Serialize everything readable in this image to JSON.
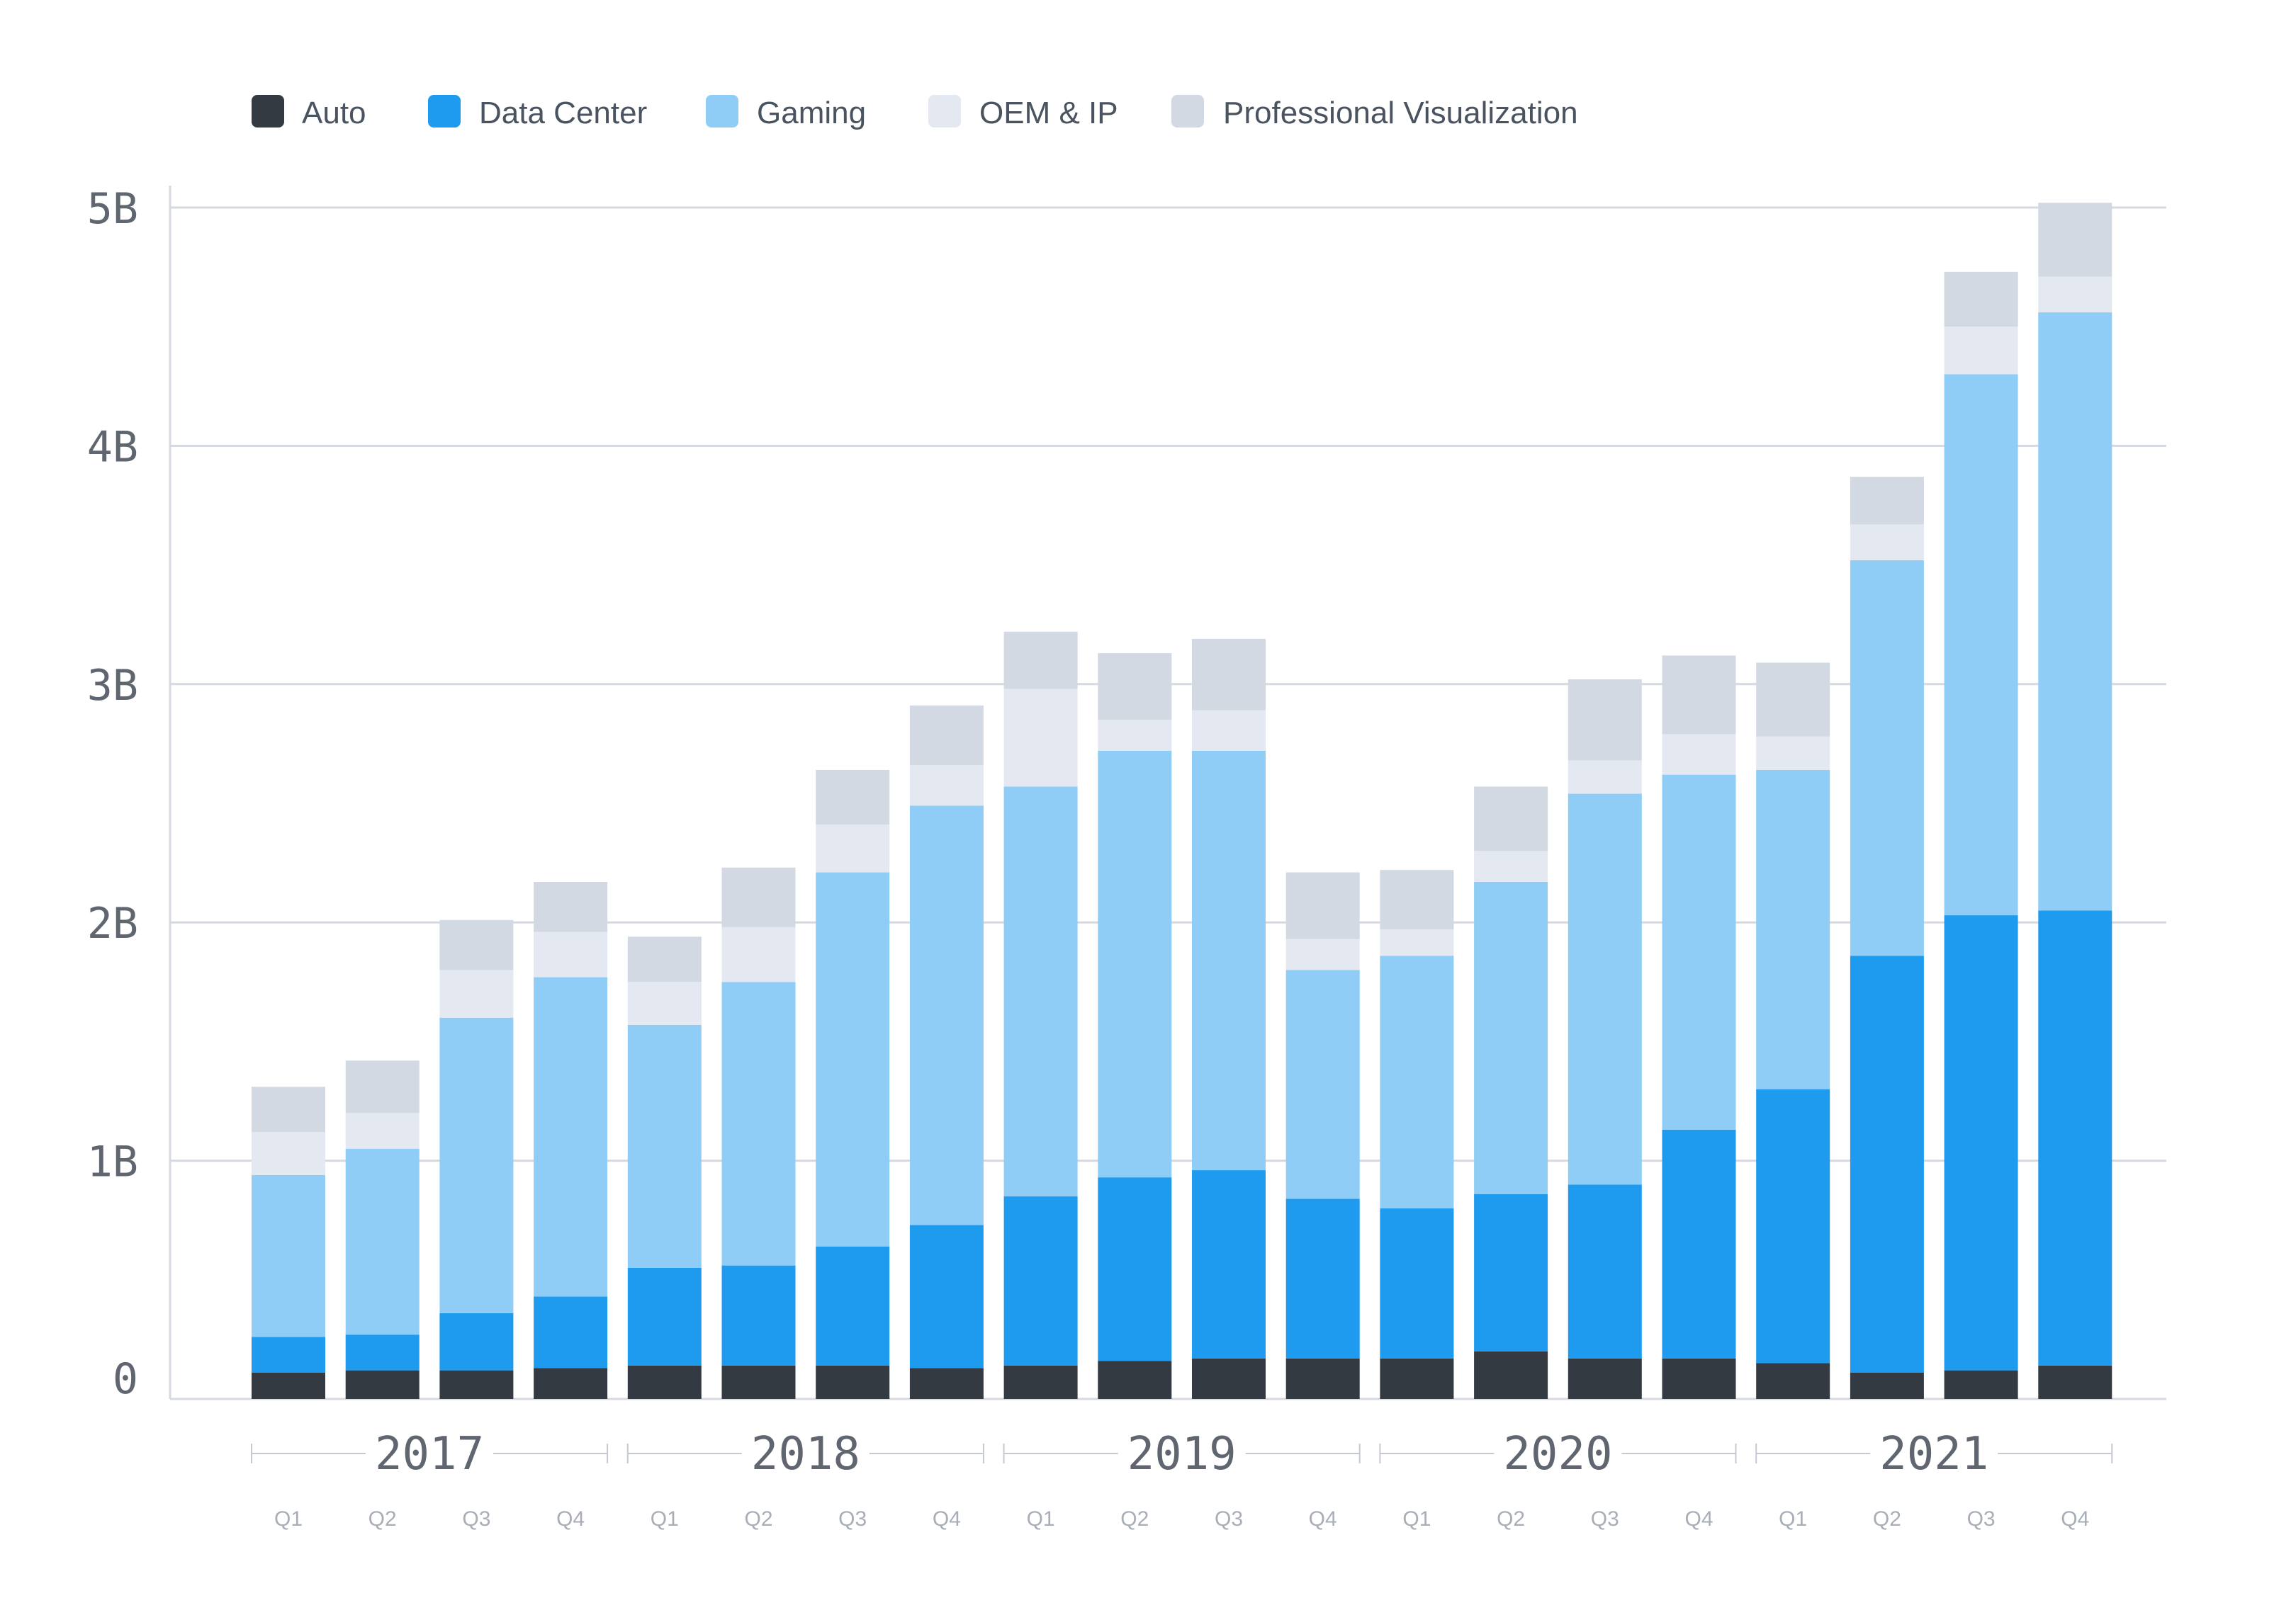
{
  "chart_data": {
    "type": "bar",
    "stacked": true,
    "title": "",
    "xlabel": "",
    "ylabel": "",
    "ylim": [
      0,
      5
    ],
    "y_unit": "B",
    "y_ticks": [
      "0",
      "1B",
      "2B",
      "3B",
      "4B",
      "5B"
    ],
    "grid": true,
    "legend_position": "top-left",
    "years": [
      "2017",
      "2018",
      "2019",
      "2020",
      "2021"
    ],
    "quarters": [
      "Q1",
      "Q2",
      "Q3",
      "Q4"
    ],
    "categories": [
      "2017 Q1",
      "2017 Q2",
      "2017 Q3",
      "2017 Q4",
      "2018 Q1",
      "2018 Q2",
      "2018 Q3",
      "2018 Q4",
      "2019 Q1",
      "2019 Q2",
      "2019 Q3",
      "2019 Q4",
      "2020 Q1",
      "2020 Q2",
      "2020 Q3",
      "2020 Q4",
      "2021 Q1",
      "2021 Q2",
      "2021 Q3",
      "2021 Q4"
    ],
    "series": [
      {
        "name": "Auto",
        "color": "#343a41",
        "values": [
          0.11,
          0.12,
          0.12,
          0.13,
          0.14,
          0.14,
          0.14,
          0.13,
          0.14,
          0.16,
          0.17,
          0.17,
          0.17,
          0.2,
          0.17,
          0.17,
          0.15,
          0.11,
          0.12,
          0.14
        ]
      },
      {
        "name": "Data Center",
        "color": "#1e9bef",
        "values": [
          0.15,
          0.15,
          0.24,
          0.3,
          0.41,
          0.42,
          0.5,
          0.6,
          0.71,
          0.77,
          0.79,
          0.67,
          0.63,
          0.66,
          0.73,
          0.96,
          1.15,
          1.75,
          1.91,
          1.91
        ]
      },
      {
        "name": "Gaming",
        "color": "#8fcdf6",
        "values": [
          0.68,
          0.78,
          1.24,
          1.34,
          1.02,
          1.19,
          1.57,
          1.76,
          1.72,
          1.79,
          1.76,
          0.96,
          1.06,
          1.31,
          1.64,
          1.49,
          1.34,
          1.66,
          2.27,
          2.51
        ]
      },
      {
        "name": "OEM & IP",
        "color": "#e4e8f0",
        "values": [
          0.18,
          0.15,
          0.2,
          0.19,
          0.18,
          0.23,
          0.2,
          0.17,
          0.41,
          0.13,
          0.17,
          0.13,
          0.11,
          0.13,
          0.14,
          0.17,
          0.14,
          0.15,
          0.2,
          0.15
        ]
      },
      {
        "name": "Professional Visualization",
        "color": "#d3d9e2",
        "values": [
          0.19,
          0.22,
          0.21,
          0.21,
          0.19,
          0.25,
          0.23,
          0.25,
          0.24,
          0.28,
          0.3,
          0.28,
          0.25,
          0.27,
          0.34,
          0.33,
          0.31,
          0.2,
          0.23,
          0.31
        ]
      }
    ]
  }
}
